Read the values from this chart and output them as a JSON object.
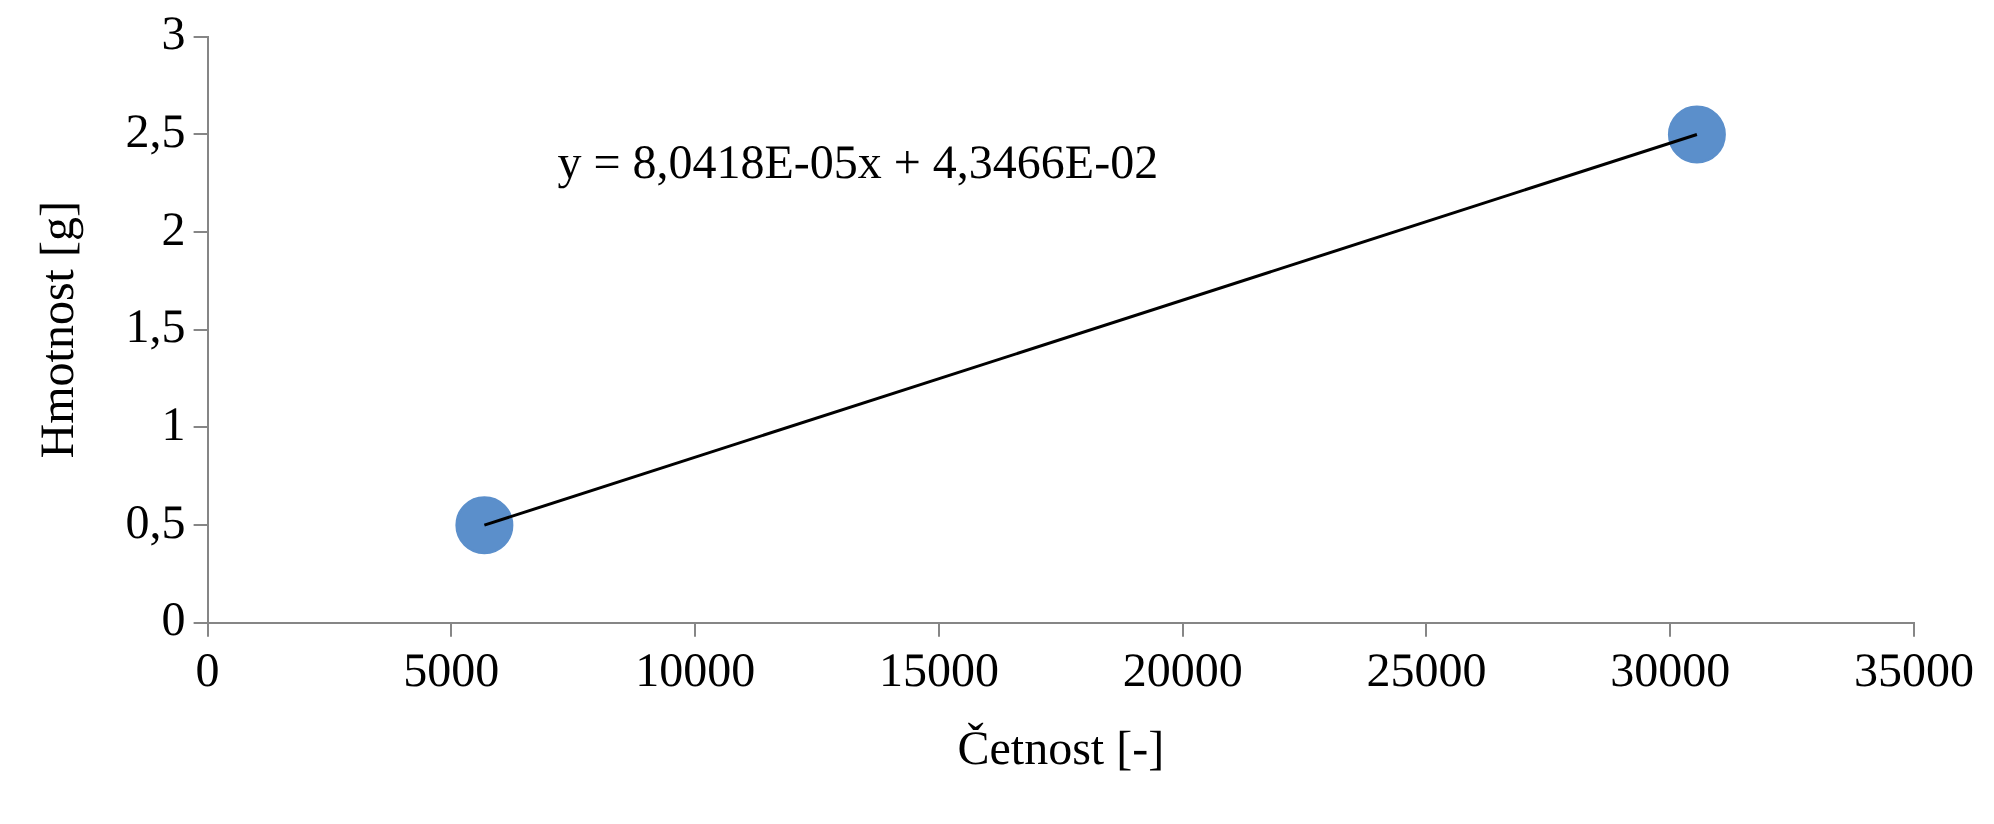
{
  "chart_data": {
    "type": "scatter",
    "xlabel": "Četnost [-]",
    "ylabel": "Hmotnost [g]",
    "x": [
      5677,
      30547
    ],
    "series": [
      {
        "type": "scatter",
        "color": "#5b8fcb",
        "values": [
          0.5,
          2.5
        ],
        "marker": "circle"
      },
      {
        "type": "line",
        "color": "#000000",
        "values": [
          0.5,
          2.5
        ],
        "marker": "none",
        "line_style": "solid"
      }
    ],
    "annotations": [
      "y = 8,0418E-05x + 4,3466E-02"
    ],
    "xlim": [
      0,
      35000
    ],
    "xticks": [
      0,
      5000,
      10000,
      15000,
      20000,
      25000,
      30000,
      35000
    ],
    "ylim": [
      0,
      3
    ],
    "yticks": [
      0,
      {
        "value": 0.5,
        "label": "0,5"
      },
      1,
      {
        "value": 1.5,
        "label": "1,5"
      },
      2,
      {
        "value": 2.5,
        "label": "2,5"
      },
      3
    ],
    "grid": false,
    "legend": false
  }
}
